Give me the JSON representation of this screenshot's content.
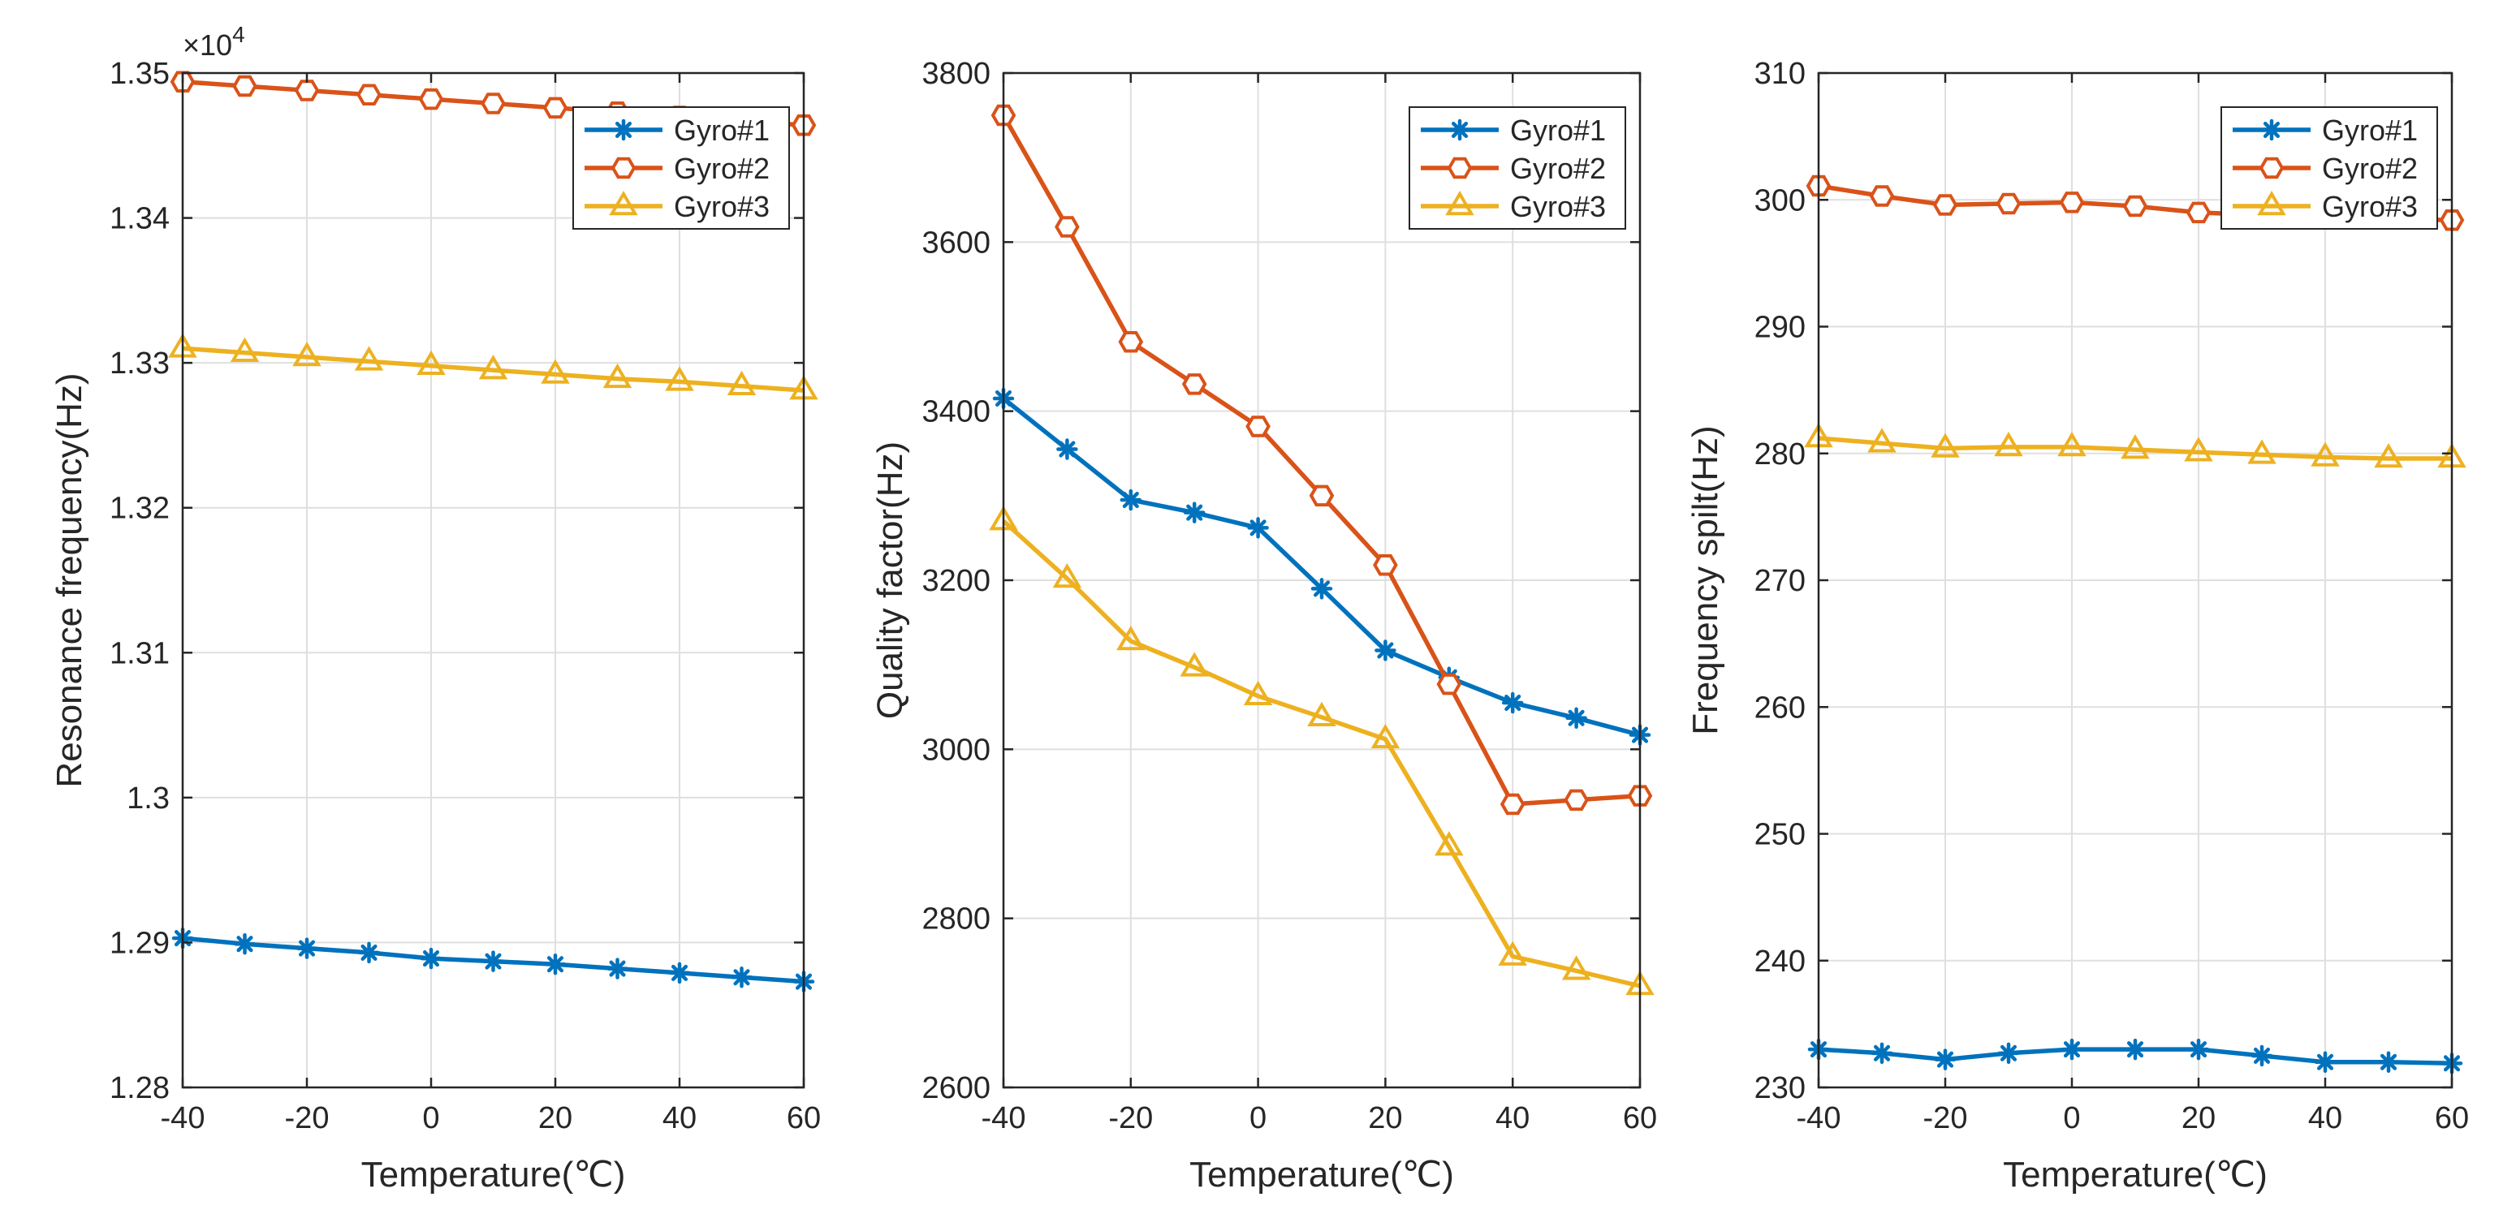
{
  "chart_data": [
    {
      "type": "line",
      "xlabel": "Temperature(℃)",
      "ylabel": "Resonance frequency(Hz)",
      "y_exponent_label": "×10",
      "y_exponent_power": "4",
      "xlim": [
        -40,
        60
      ],
      "ylim": [
        1.28,
        1.35
      ],
      "x_ticks": [
        -40,
        -20,
        0,
        20,
        40,
        60
      ],
      "x_tick_labels": [
        "-40",
        "-20",
        "0",
        "20",
        "40",
        "60"
      ],
      "y_ticks": [
        1.28,
        1.29,
        1.3,
        1.31,
        1.32,
        1.33,
        1.34,
        1.35
      ],
      "y_tick_labels": [
        "1.28",
        "1.29",
        "1.3",
        "1.31",
        "1.32",
        "1.33",
        "1.34",
        "1.35"
      ],
      "grid": true,
      "legend_position": "top-right",
      "x": [
        -40,
        -30,
        -20,
        -10,
        0,
        10,
        20,
        30,
        40,
        50,
        60
      ],
      "series": [
        {
          "name": "Gyro#1",
          "values": [
            1.2903,
            1.2899,
            1.2896,
            1.2893,
            1.2889,
            1.2887,
            1.2885,
            1.2882,
            1.2879,
            1.2876,
            1.2873
          ]
        },
        {
          "name": "Gyro#2",
          "values": [
            1.3494,
            1.3491,
            1.3488,
            1.3485,
            1.3482,
            1.3479,
            1.3476,
            1.3473,
            1.347,
            1.3467,
            1.3464
          ]
        },
        {
          "name": "Gyro#3",
          "values": [
            1.331,
            1.3307,
            1.3304,
            1.3301,
            1.3298,
            1.3295,
            1.3292,
            1.3289,
            1.3287,
            1.3284,
            1.3281
          ]
        }
      ]
    },
    {
      "type": "line",
      "xlabel": "Temperature(℃)",
      "ylabel": "Quality factor(Hz)",
      "xlim": [
        -40,
        60
      ],
      "ylim": [
        2600,
        3800
      ],
      "x_ticks": [
        -40,
        -20,
        0,
        20,
        40,
        60
      ],
      "x_tick_labels": [
        "-40",
        "-20",
        "0",
        "20",
        "40",
        "60"
      ],
      "y_ticks": [
        2600,
        2800,
        3000,
        3200,
        3400,
        3600,
        3800
      ],
      "y_tick_labels": [
        "2600",
        "2800",
        "3000",
        "3200",
        "3400",
        "3600",
        "3800"
      ],
      "grid": true,
      "legend_position": "top-right",
      "x": [
        -40,
        -30,
        -20,
        -10,
        0,
        10,
        20,
        30,
        40,
        50,
        60
      ],
      "series": [
        {
          "name": "Gyro#1",
          "values": [
            3415,
            3355,
            3295,
            3280,
            3262,
            3190,
            3117,
            3085,
            3055,
            3037,
            3017
          ]
        },
        {
          "name": "Gyro#2",
          "values": [
            3750,
            3618,
            3482,
            3432,
            3382,
            3300,
            3218,
            3077,
            2935,
            2940,
            2945
          ]
        },
        {
          "name": "Gyro#3",
          "values": [
            3270,
            3202,
            3128,
            3097,
            3063,
            3038,
            3012,
            2885,
            2755,
            2738,
            2720
          ]
        }
      ]
    },
    {
      "type": "line",
      "xlabel": "Temperature(℃)",
      "ylabel": "Frequency spilt(Hz)",
      "xlim": [
        -40,
        60
      ],
      "ylim": [
        230,
        310
      ],
      "x_ticks": [
        -40,
        -20,
        0,
        20,
        40,
        60
      ],
      "x_tick_labels": [
        "-40",
        "-20",
        "0",
        "20",
        "40",
        "60"
      ],
      "y_ticks": [
        230,
        240,
        250,
        260,
        270,
        280,
        290,
        300,
        310
      ],
      "y_tick_labels": [
        "230",
        "240",
        "250",
        "260",
        "270",
        "280",
        "290",
        "300",
        "310"
      ],
      "grid": true,
      "legend_position": "top-right",
      "x": [
        -40,
        -30,
        -20,
        -10,
        0,
        10,
        20,
        30,
        40,
        50,
        60
      ],
      "series": [
        {
          "name": "Gyro#1",
          "values": [
            233.0,
            232.7,
            232.2,
            232.7,
            233.0,
            233.0,
            233.0,
            232.5,
            232.0,
            232.0,
            231.9
          ]
        },
        {
          "name": "Gyro#2",
          "values": [
            301.1,
            300.3,
            299.6,
            299.7,
            299.8,
            299.5,
            299.0,
            298.8,
            298.6,
            298.5,
            298.4
          ]
        },
        {
          "name": "Gyro#3",
          "values": [
            281.2,
            280.8,
            280.4,
            280.5,
            280.5,
            280.3,
            280.1,
            279.9,
            279.7,
            279.6,
            279.6
          ]
        }
      ]
    }
  ],
  "style": {
    "series_colors": [
      "#0072BD",
      "#D95319",
      "#EDB120"
    ],
    "series_markers": [
      "asterisk",
      "hexagon",
      "triangle"
    ],
    "axis_color": "#262626",
    "grid_color": "#dfdfdf"
  }
}
